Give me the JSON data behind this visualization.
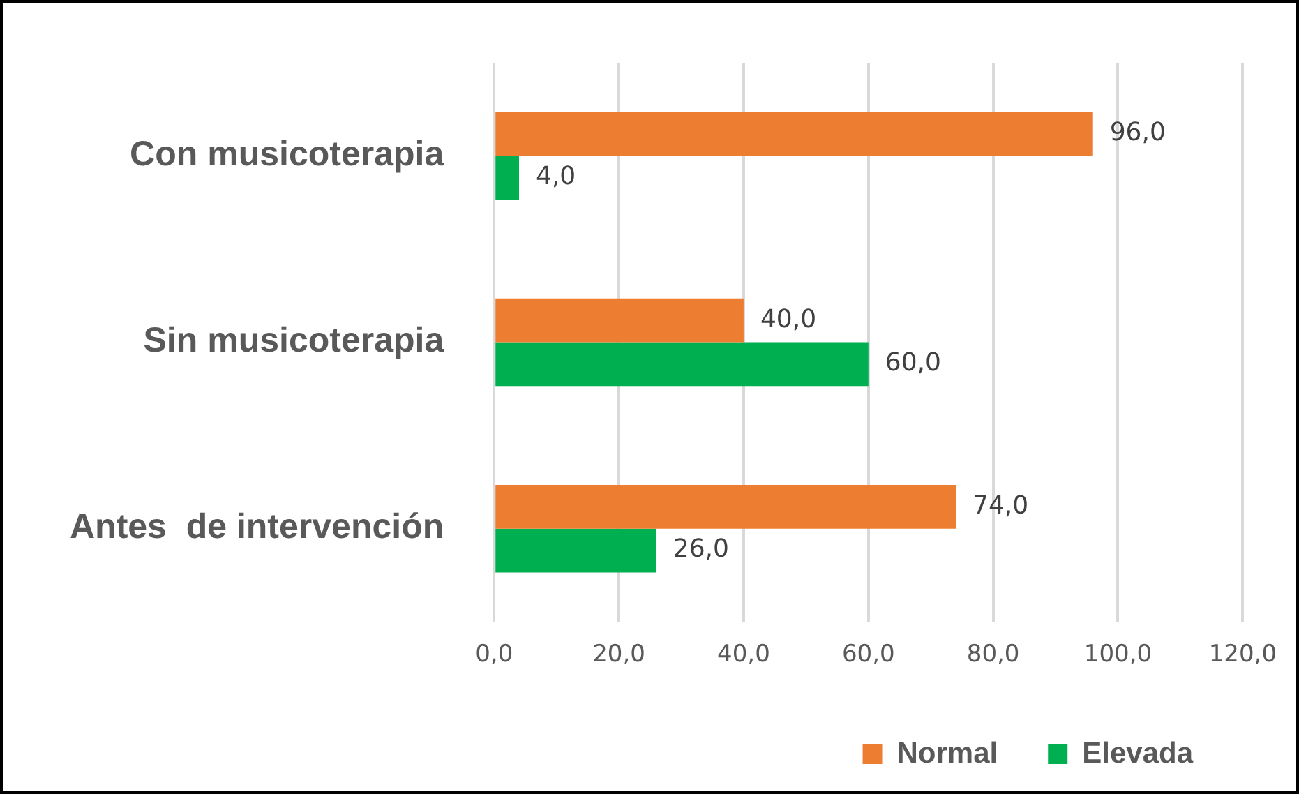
{
  "chart_data": {
    "type": "bar",
    "orientation": "horizontal",
    "categories": [
      "Con musicoterapia",
      "Sin musicoterapia",
      "Antes  de intervención"
    ],
    "series": [
      {
        "name": "Normal",
        "color": "#ed7d31",
        "values": [
          96,
          40,
          74
        ],
        "value_labels": [
          "96,0",
          "40,0",
          "74,0"
        ]
      },
      {
        "name": "Elevada",
        "color": "#00b050",
        "values": [
          4,
          60,
          26
        ],
        "value_labels": [
          "4,0",
          "60,0",
          "26,0"
        ]
      }
    ],
    "xlim": [
      0,
      120
    ],
    "xticks": [
      {
        "value": 0,
        "label": "0,0"
      },
      {
        "value": 20,
        "label": "20,0"
      },
      {
        "value": 40,
        "label": "40,0"
      },
      {
        "value": 60,
        "label": "60,0"
      },
      {
        "value": 80,
        "label": "80,0"
      },
      {
        "value": 100,
        "label": "100,0"
      },
      {
        "value": 120,
        "label": "120,0"
      }
    ],
    "grid": "x",
    "legend": "bottom"
  }
}
